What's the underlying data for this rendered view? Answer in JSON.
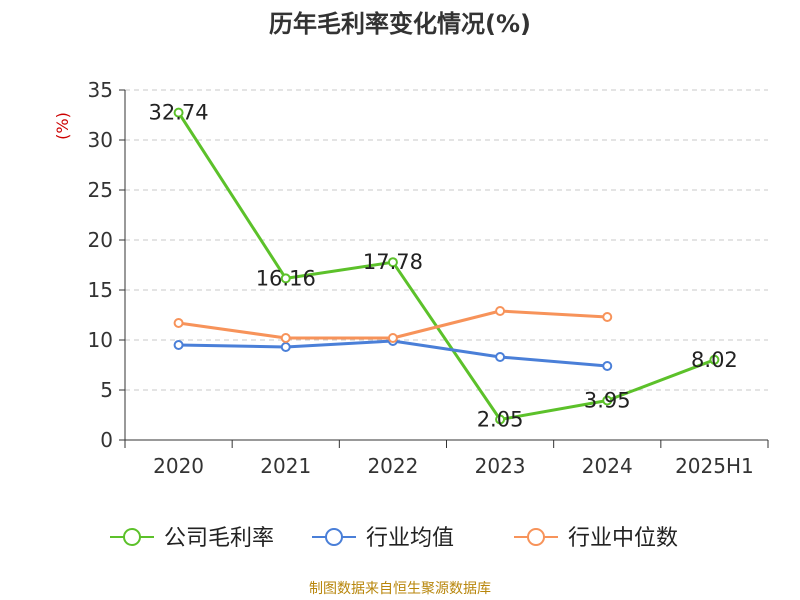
{
  "chart_data": {
    "type": "line",
    "title": "历年毛利率变化情况(%)",
    "ylabel": "(%)",
    "xlabel": "",
    "categories": [
      "2020",
      "2021",
      "2022",
      "2023",
      "2024",
      "2025H1"
    ],
    "ylim": [
      0,
      35
    ],
    "yticks": [
      0,
      5,
      10,
      15,
      20,
      25,
      30,
      35
    ],
    "grid": true,
    "legend_position": "bottom",
    "series": [
      {
        "name": "公司毛利率",
        "color": "#5cc12a",
        "values": [
          32.74,
          16.16,
          17.78,
          2.05,
          3.95,
          8.02
        ],
        "labels": [
          "32.74",
          "16.16",
          "17.78",
          "2.05",
          "3.95",
          "8.02"
        ]
      },
      {
        "name": "行业均值",
        "color": "#4a7fd8",
        "values": [
          9.5,
          9.3,
          9.9,
          8.3,
          7.4,
          null
        ]
      },
      {
        "name": "行业中位数",
        "color": "#f7935a",
        "values": [
          11.7,
          10.2,
          10.2,
          12.9,
          12.3,
          null
        ]
      }
    ]
  },
  "footer": {
    "source": "制图数据来自恒生聚源数据库"
  }
}
